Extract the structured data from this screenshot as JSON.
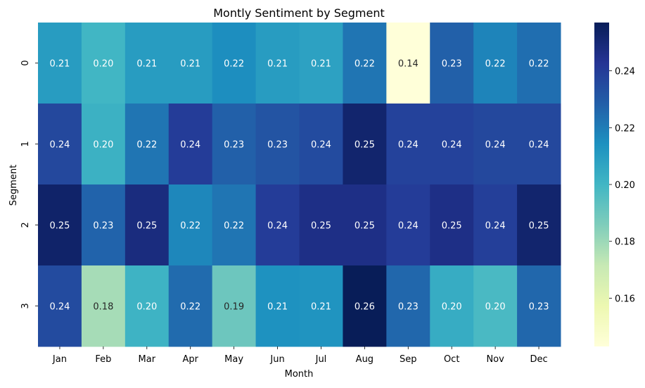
{
  "chart_data": {
    "type": "heatmap",
    "title": "Montly Sentiment by Segment",
    "xlabel": "Month",
    "ylabel": "Segment",
    "x_categories": [
      "Jan",
      "Feb",
      "Mar",
      "Apr",
      "May",
      "Jun",
      "Jul",
      "Aug",
      "Sep",
      "Oct",
      "Nov",
      "Dec"
    ],
    "y_categories": [
      "0",
      "1",
      "2",
      "3"
    ],
    "values": [
      [
        0.21,
        0.2,
        0.21,
        0.21,
        0.215,
        0.21,
        0.208,
        0.222,
        0.143,
        0.228,
        0.218,
        0.224
      ],
      [
        0.236,
        0.202,
        0.222,
        0.24,
        0.228,
        0.232,
        0.235,
        0.252,
        0.238,
        0.238,
        0.236,
        0.236
      ],
      [
        0.253,
        0.227,
        0.248,
        0.217,
        0.222,
        0.24,
        0.246,
        0.246,
        0.24,
        0.246,
        0.239,
        0.252
      ],
      [
        0.235,
        0.178,
        0.201,
        0.225,
        0.19,
        0.214,
        0.213,
        0.257,
        0.226,
        0.204,
        0.198,
        0.226
      ]
    ],
    "annotations": [
      [
        "0.21",
        "0.20",
        "0.21",
        "0.21",
        "0.22",
        "0.21",
        "0.21",
        "0.22",
        "0.14",
        "0.23",
        "0.22",
        "0.22"
      ],
      [
        "0.24",
        "0.20",
        "0.22",
        "0.24",
        "0.23",
        "0.23",
        "0.24",
        "0.25",
        "0.24",
        "0.24",
        "0.24",
        "0.24"
      ],
      [
        "0.25",
        "0.23",
        "0.25",
        "0.22",
        "0.22",
        "0.24",
        "0.25",
        "0.25",
        "0.24",
        "0.25",
        "0.24",
        "0.25"
      ],
      [
        "0.24",
        "0.18",
        "0.20",
        "0.22",
        "0.19",
        "0.21",
        "0.21",
        "0.26",
        "0.23",
        "0.20",
        "0.20",
        "0.23"
      ]
    ],
    "colormap": "YlGnBu",
    "vmin": 0.143,
    "vmax": 0.257,
    "colorbar_ticks": [
      "0.16",
      "0.18",
      "0.20",
      "0.22",
      "0.24"
    ]
  }
}
